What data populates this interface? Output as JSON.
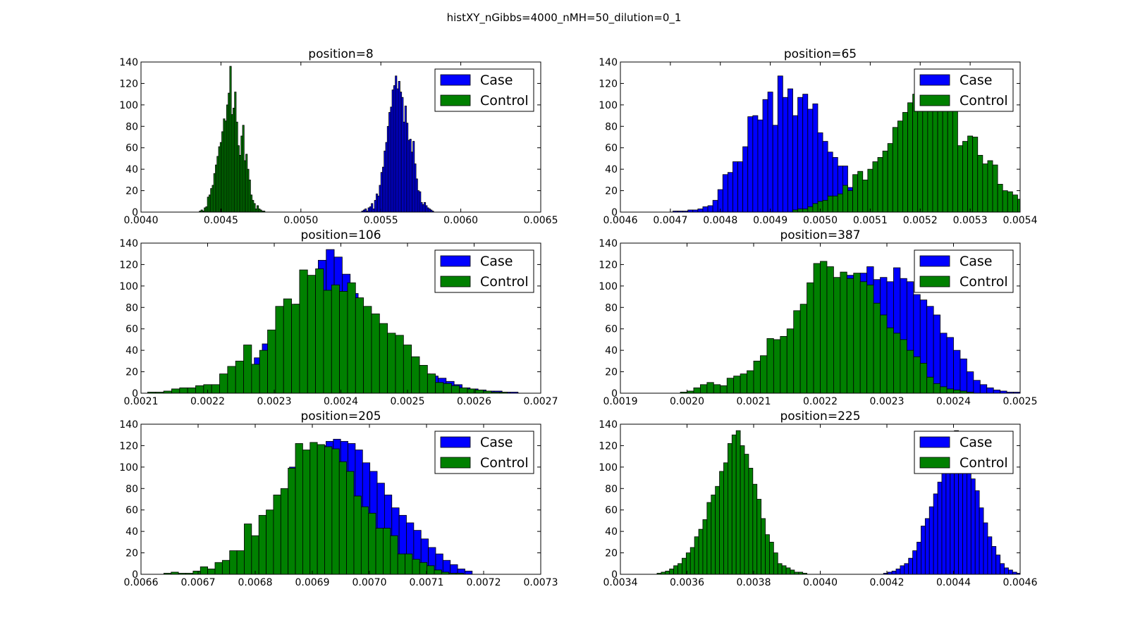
{
  "figure": {
    "suptitle": "histXY_nGibbs=4000_nMH=50_dilution=0_1"
  },
  "colors": {
    "case": "#0000ff",
    "control": "#008000",
    "edge": "#000000",
    "axis": "#000000"
  },
  "chart_data": [
    {
      "type": "bar",
      "title": "position=8",
      "xlim": [
        0.004,
        0.0065
      ],
      "ylim": [
        0,
        140
      ],
      "xticks": [
        "0.0040",
        "0.0045",
        "0.0050",
        "0.0055",
        "0.0060",
        "0.0065"
      ],
      "yticks": [
        "0",
        "20",
        "40",
        "60",
        "80",
        "100",
        "120",
        "140"
      ],
      "legend": {
        "location": "upper right",
        "entries": [
          "Case",
          "Control"
        ]
      },
      "series": [
        {
          "name": "Case",
          "bin_start": 0.00538,
          "bin_width": 1e-05,
          "counts": [
            1,
            2,
            3,
            1,
            4,
            5,
            8,
            3,
            11,
            17,
            15,
            25,
            37,
            42,
            57,
            65,
            80,
            93,
            98,
            114,
            118,
            127,
            115,
            122,
            112,
            107,
            84,
            99,
            83,
            67,
            68,
            56,
            66,
            45,
            31,
            20,
            19,
            9,
            7,
            9,
            6,
            4,
            3,
            2,
            1
          ]
        },
        {
          "name": "Control",
          "bin_start": 0.004365,
          "bin_width": 1e-05,
          "counts": [
            1,
            2,
            1,
            4,
            5,
            14,
            16,
            22,
            25,
            36,
            44,
            52,
            61,
            65,
            75,
            87,
            85,
            100,
            111,
            136,
            91,
            97,
            112,
            84,
            62,
            53,
            71,
            81,
            48,
            54,
            40,
            30,
            16,
            11,
            8,
            3,
            6,
            3,
            2,
            1,
            1
          ]
        }
      ]
    },
    {
      "type": "bar",
      "title": "position=65",
      "xlim": [
        0.0046,
        0.0054
      ],
      "ylim": [
        0,
        140
      ],
      "xticks": [
        "0.0046",
        "0.0047",
        "0.0048",
        "0.0049",
        "0.0050",
        "0.0051",
        "0.0052",
        "0.0053",
        "0.0054"
      ],
      "yticks": [
        "0",
        "20",
        "40",
        "60",
        "80",
        "100",
        "120",
        "140"
      ],
      "legend": {
        "location": "upper right",
        "entries": [
          "Case",
          "Control"
        ]
      },
      "series": [
        {
          "name": "Case",
          "bin_start": 0.004705,
          "bin_width": 1e-05,
          "counts": [
            1,
            1,
            1,
            2,
            2,
            3,
            5,
            6,
            11,
            21,
            35,
            37,
            47,
            47,
            61,
            89,
            90,
            86,
            105,
            112,
            81,
            127,
            107,
            115,
            90,
            107,
            110,
            96,
            101,
            74,
            66,
            56,
            51,
            43,
            43,
            23,
            23,
            24,
            22,
            15,
            13,
            13,
            9,
            8,
            6,
            4,
            3,
            2,
            1
          ]
        },
        {
          "name": "Control",
          "bin_start": 0.004945,
          "bin_width": 1e-05,
          "counts": [
            2,
            3,
            3,
            5,
            8,
            10,
            11,
            15,
            15,
            17,
            25,
            20,
            35,
            38,
            30,
            40,
            47,
            51,
            57,
            64,
            79,
            85,
            93,
            102,
            110,
            98,
            97,
            95,
            107,
            106,
            113,
            105,
            98,
            62,
            66,
            71,
            70,
            53,
            45,
            48,
            44,
            26,
            20,
            19,
            16,
            12,
            9,
            7,
            5,
            4,
            3,
            2,
            2,
            1,
            3,
            2
          ]
        }
      ]
    },
    {
      "type": "bar",
      "title": "position=106",
      "xlim": [
        0.0021,
        0.0027
      ],
      "ylim": [
        0,
        140
      ],
      "xticks": [
        "0.0021",
        "0.0022",
        "0.0023",
        "0.0024",
        "0.0025",
        "0.0026",
        "0.0027"
      ],
      "yticks": [
        "0",
        "20",
        "40",
        "60",
        "80",
        "100",
        "120",
        "140"
      ],
      "legend": {
        "location": "upper right",
        "entries": [
          "Case",
          "Control"
        ]
      },
      "series": [
        {
          "name": "Case",
          "bin_start": 0.00221,
          "bin_width": 1.2e-05,
          "counts": [
            3,
            8,
            12,
            17,
            22,
            33,
            46,
            57,
            67,
            75,
            83,
            95,
            108,
            124,
            134,
            127,
            111,
            93,
            79,
            66,
            58,
            45,
            39,
            32,
            29,
            22,
            18,
            16,
            14,
            11,
            8,
            5,
            4,
            3,
            2,
            2,
            1,
            1
          ]
        },
        {
          "name": "Control",
          "bin_start": 0.00211,
          "bin_width": 1.2e-05,
          "counts": [
            1,
            1,
            2,
            4,
            5,
            5,
            7,
            8,
            8,
            18,
            25,
            30,
            45,
            27,
            40,
            59,
            81,
            88,
            83,
            115,
            110,
            116,
            96,
            101,
            95,
            103,
            89,
            81,
            74,
            65,
            56,
            54,
            45,
            34,
            26,
            18,
            10,
            9,
            7,
            5,
            4,
            3,
            2,
            1,
            1
          ]
        }
      ]
    },
    {
      "type": "bar",
      "title": "position=387",
      "xlim": [
        0.0019,
        0.0025
      ],
      "ylim": [
        0,
        140
      ],
      "xticks": [
        "0.0019",
        "0.0020",
        "0.0021",
        "0.0022",
        "0.0023",
        "0.0024",
        "0.0025"
      ],
      "yticks": [
        "0",
        "20",
        "40",
        "60",
        "80",
        "100",
        "120",
        "140"
      ],
      "legend": {
        "location": "upper right",
        "entries": [
          "Case",
          "Control"
        ]
      },
      "series": [
        {
          "name": "Case",
          "bin_start": 0.00211,
          "bin_width": 1e-05,
          "counts": [
            5,
            10,
            18,
            28,
            38,
            48,
            56,
            66,
            75,
            86,
            93,
            101,
            98,
            110,
            104,
            112,
            118,
            106,
            108,
            104,
            117,
            107,
            104,
            92,
            87,
            81,
            73,
            56,
            52,
            40,
            32,
            20,
            12,
            8,
            5,
            3,
            2,
            1,
            1
          ]
        },
        {
          "name": "Control",
          "bin_start": 0.00199,
          "bin_width": 1e-05,
          "counts": [
            1,
            2,
            5,
            8,
            10,
            8,
            7,
            14,
            16,
            18,
            21,
            30,
            35,
            51,
            50,
            53,
            60,
            77,
            83,
            103,
            121,
            123,
            118,
            108,
            113,
            107,
            112,
            104,
            101,
            84,
            73,
            61,
            56,
            50,
            40,
            34,
            28,
            15,
            9,
            6,
            4,
            3,
            2,
            1
          ]
        }
      ]
    },
    {
      "type": "bar",
      "title": "position=205",
      "xlim": [
        0.0066,
        0.0073
      ],
      "ylim": [
        0,
        140
      ],
      "xticks": [
        "0.0066",
        "0.0067",
        "0.0068",
        "0.0069",
        "0.0070",
        "0.0071",
        "0.0072",
        "0.0073"
      ],
      "yticks": [
        "0",
        "20",
        "40",
        "60",
        "80",
        "100",
        "120",
        "140"
      ],
      "legend": {
        "location": "upper right",
        "entries": [
          "Case",
          "Control"
        ]
      },
      "series": [
        {
          "name": "Case",
          "bin_start": 0.00686,
          "bin_width": 1.28e-05,
          "counts": [
            100,
            108,
            113,
            117,
            120,
            124,
            126,
            124,
            122,
            116,
            104,
            96,
            85,
            74,
            62,
            55,
            48,
            41,
            33,
            25,
            19,
            13,
            9,
            5,
            3
          ]
        },
        {
          "name": "Control",
          "bin_start": 0.00664,
          "bin_width": 1.28e-05,
          "counts": [
            1,
            2,
            1,
            1,
            3,
            7,
            5,
            11,
            13,
            22,
            22,
            47,
            36,
            55,
            60,
            74,
            80,
            99,
            122,
            116,
            123,
            121,
            119,
            117,
            105,
            96,
            73,
            63,
            57,
            43,
            43,
            36,
            19,
            19,
            14,
            11,
            8,
            4,
            2,
            1,
            1
          ]
        }
      ]
    },
    {
      "type": "bar",
      "title": "position=225",
      "xlim": [
        0.0034,
        0.0046
      ],
      "ylim": [
        0,
        140
      ],
      "xticks": [
        "0.0034",
        "0.0036",
        "0.0038",
        "0.0040",
        "0.0042",
        "0.0044",
        "0.0046"
      ],
      "yticks": [
        "0",
        "20",
        "40",
        "60",
        "80",
        "100",
        "120",
        "140"
      ],
      "legend": {
        "location": "upper right",
        "entries": [
          "Case",
          "Control"
        ]
      },
      "series": [
        {
          "name": "Case",
          "bin_start": 0.00419,
          "bin_width": 1.25e-05,
          "counts": [
            1,
            2,
            3,
            5,
            8,
            10,
            15,
            22,
            30,
            45,
            52,
            63,
            75,
            86,
            96,
            110,
            128,
            134,
            122,
            118,
            106,
            89,
            78,
            62,
            48,
            35,
            26,
            18,
            10,
            6,
            4,
            2,
            1
          ]
        },
        {
          "name": "Control",
          "bin_start": 0.00351,
          "bin_width": 1.25e-05,
          "counts": [
            1,
            2,
            3,
            5,
            8,
            10,
            15,
            20,
            25,
            35,
            42,
            51,
            67,
            74,
            82,
            96,
            104,
            122,
            130,
            134,
            120,
            112,
            99,
            84,
            70,
            52,
            37,
            30,
            20,
            10,
            8,
            6,
            4,
            2,
            2,
            1
          ]
        }
      ]
    }
  ]
}
